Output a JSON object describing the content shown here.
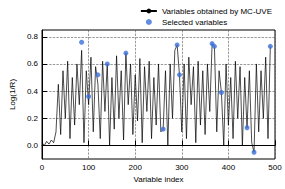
{
  "chart_data": {
    "type": "line",
    "x_label": "Variable index",
    "y_label": "Log(1/R)",
    "xlim": [
      0,
      500
    ],
    "xticks": [
      0,
      100,
      200,
      300,
      400,
      500
    ],
    "ylim": [
      -0.1,
      0.85
    ],
    "yticks": [
      {
        "value": 0,
        "label": "0.0"
      },
      0.2,
      0.4,
      0.6,
      0.8
    ],
    "grid": true,
    "legend": "top-right",
    "series": [
      {
        "name": "Variables obtained by MC-UVE",
        "type": "line",
        "color": "#000000",
        "line_style": "solid",
        "x": [
          0,
          5,
          10,
          15,
          20,
          25,
          30,
          35,
          40,
          45,
          50,
          55,
          60,
          65,
          70,
          75,
          80,
          85,
          90,
          95,
          100,
          105,
          110,
          115,
          120,
          125,
          130,
          135,
          140,
          145,
          150,
          155,
          160,
          165,
          170,
          175,
          180,
          185,
          190,
          195,
          200,
          205,
          210,
          215,
          220,
          225,
          230,
          235,
          240,
          245,
          250,
          255,
          260,
          265,
          270,
          275,
          280,
          285,
          290,
          295,
          300,
          305,
          310,
          315,
          320,
          325,
          330,
          335,
          340,
          345,
          350,
          355,
          360,
          365,
          370,
          375,
          380,
          385,
          390,
          395,
          400,
          405,
          410,
          415,
          420,
          425,
          430,
          435,
          440,
          445,
          450,
          455,
          460,
          465,
          470,
          475,
          480,
          485,
          490
        ],
        "values": [
          0.02,
          0.0,
          0.03,
          0.01,
          0.04,
          0.02,
          0.1,
          0.45,
          0.08,
          0.55,
          0.2,
          0.62,
          0.05,
          0.5,
          0.15,
          0.6,
          0.3,
          0.7,
          0.02,
          0.55,
          0.3,
          0.65,
          0.1,
          0.58,
          0.45,
          0.05,
          0.62,
          0.25,
          0.6,
          0.0,
          0.5,
          0.12,
          0.66,
          0.2,
          0.55,
          0.04,
          0.68,
          0.3,
          0.6,
          0.08,
          0.52,
          0.18,
          0.64,
          0.02,
          0.58,
          0.25,
          0.62,
          0.05,
          0.5,
          0.15,
          0.6,
          0.1,
          0.12,
          0.55,
          0.0,
          0.6,
          0.2,
          0.7,
          0.74,
          0.52,
          0.1,
          0.6,
          0.05,
          0.65,
          0.3,
          0.58,
          0.02,
          0.62,
          0.15,
          0.55,
          0.08,
          0.6,
          0.25,
          0.75,
          0.73,
          0.1,
          0.55,
          0.39,
          0.0,
          0.6,
          0.15,
          0.5,
          0.05,
          0.62,
          0.2,
          0.58,
          0.0,
          0.5,
          0.13,
          0.55,
          0.02,
          -0.05,
          0.6,
          0.1,
          0.55,
          0.2,
          0.65,
          0.05,
          0.73
        ]
      },
      {
        "name": "Selected variables",
        "type": "scatter",
        "color": "#3b6fd8",
        "marker": "circle",
        "x": [
          85,
          100,
          120,
          140,
          180,
          260,
          290,
          295,
          365,
          370,
          385,
          440,
          455,
          490
        ],
        "values": [
          0.76,
          0.36,
          0.52,
          0.6,
          0.68,
          0.12,
          0.74,
          0.52,
          0.75,
          0.73,
          0.39,
          0.13,
          -0.05,
          0.73
        ]
      }
    ]
  }
}
